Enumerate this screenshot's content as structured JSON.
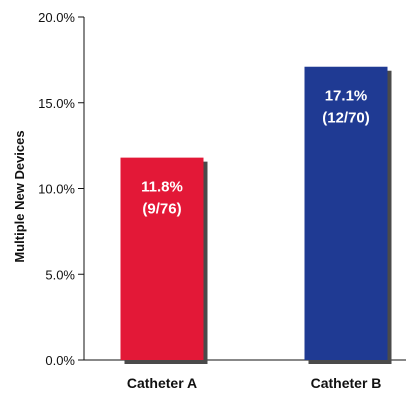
{
  "chart_data": {
    "type": "bar",
    "categories": [
      "Catheter A",
      "Catheter B"
    ],
    "values": [
      11.8,
      17.1
    ],
    "data_labels": [
      {
        "percent": "11.8%",
        "count": "(9/76)"
      },
      {
        "percent": "17.1%",
        "count": "(12/70)"
      }
    ],
    "colors": [
      "#e31837",
      "#1f3a93"
    ],
    "title": "",
    "xlabel": "",
    "ylabel": "Multiple New Devices",
    "ylim": [
      0,
      20
    ],
    "yticks": [
      0,
      5,
      10,
      15,
      20
    ],
    "ytick_labels": [
      "0.0%",
      "5.0%",
      "10.0%",
      "15.0%",
      "20.0%"
    ],
    "grid": false,
    "legend": "none"
  }
}
